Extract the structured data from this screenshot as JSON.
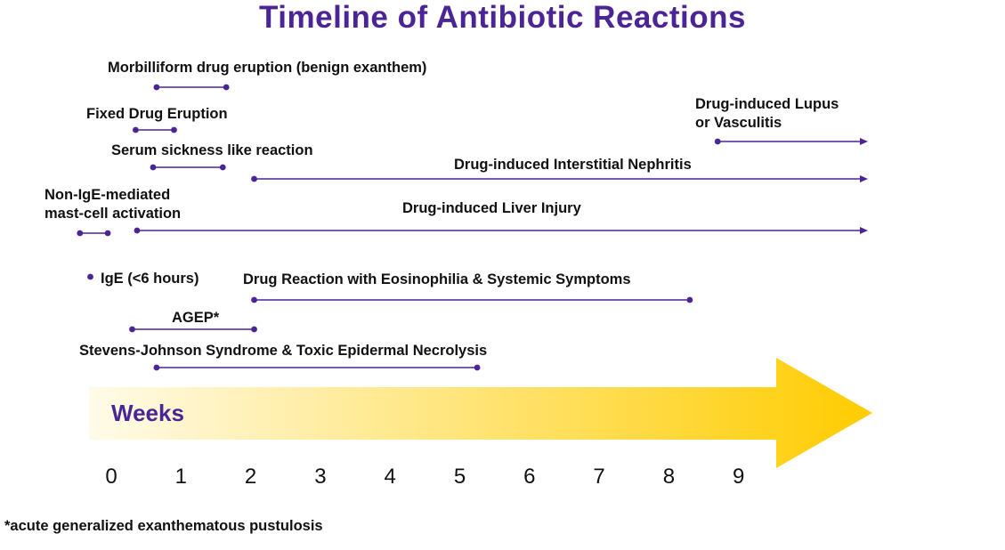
{
  "title": "Timeline of Antibiotic Reactions",
  "axis": {
    "label": "Weeks",
    "ticks": [
      "0",
      "1",
      "2",
      "3",
      "4",
      "5",
      "6",
      "7",
      "8",
      "9"
    ]
  },
  "colors": {
    "title": "#4b2596",
    "line": "#4b2596",
    "arrow_start": "#fffbe9",
    "arrow_end": "#ffcc00"
  },
  "reactions": [
    {
      "name": "Morbilliform drug eruption (benign exanthem)",
      "start": 0.65,
      "end": 1.65,
      "ongoing": false
    },
    {
      "name": "Fixed Drug Eruption",
      "start": 0.35,
      "end": 0.9,
      "ongoing": false
    },
    {
      "name": "Serum sickness like reaction",
      "start": 0.6,
      "end": 1.6,
      "ongoing": false
    },
    {
      "name": "Drug-induced Lupus or Vasculitis",
      "start": 8.7,
      "end": null,
      "ongoing": true
    },
    {
      "name": "Drug-induced Interstitial Nephritis",
      "start": 2.05,
      "end": null,
      "ongoing": true
    },
    {
      "name": "Non-IgE-mediated mast-cell activation",
      "start": -0.45,
      "end": -0.05,
      "ongoing": false
    },
    {
      "name": "Drug-induced Liver Injury",
      "start": 0.37,
      "end": null,
      "ongoing": true
    },
    {
      "name": "IgE (<6 hours)",
      "start": -0.3,
      "end": -0.3,
      "ongoing": false
    },
    {
      "name": "Drug Reaction with Eosinophilia & Systemic Symptoms",
      "start": 2.05,
      "end": 8.3,
      "ongoing": false
    },
    {
      "name": "AGEP*",
      "start": 0.3,
      "end": 2.05,
      "ongoing": false
    },
    {
      "name": "Stevens-Johnson Syndrome & Toxic Epidermal Necrolysis",
      "start": 0.65,
      "end": 5.25,
      "ongoing": false
    }
  ],
  "footnote": "*acute generalized exanthematous pustulosis"
}
